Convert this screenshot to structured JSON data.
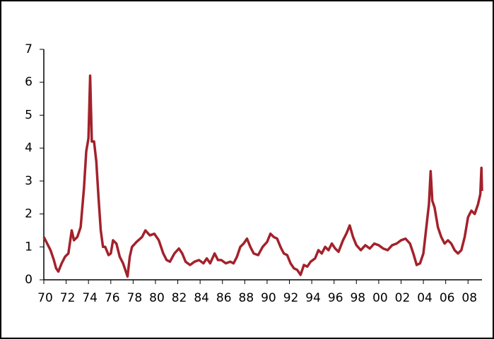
{
  "chart_data": {
    "type": "line",
    "x": [
      1970,
      1970.3,
      1970.6,
      1970.9,
      1971.1,
      1971.3,
      1971.6,
      1971.9,
      1972.2,
      1972.5,
      1972.7,
      1973.0,
      1973.3,
      1973.6,
      1973.8,
      1974.0,
      1974.15,
      1974.3,
      1974.5,
      1974.7,
      1974.9,
      1975.1,
      1975.3,
      1975.5,
      1975.8,
      1976.0,
      1976.2,
      1976.5,
      1976.8,
      1977.1,
      1977.3,
      1977.5,
      1977.7,
      1977.9,
      1978.3,
      1978.8,
      1979.1,
      1979.5,
      1979.9,
      1980.3,
      1980.7,
      1981.0,
      1981.3,
      1981.7,
      1982.1,
      1982.4,
      1982.7,
      1983.1,
      1983.5,
      1983.9,
      1984.3,
      1984.6,
      1984.9,
      1985.3,
      1985.6,
      1985.9,
      1986.3,
      1986.7,
      1987.0,
      1987.3,
      1987.6,
      1987.9,
      1988.2,
      1988.5,
      1988.8,
      1989.2,
      1989.6,
      1990.0,
      1990.3,
      1990.6,
      1990.9,
      1991.2,
      1991.5,
      1991.8,
      1992.1,
      1992.4,
      1992.7,
      1993.0,
      1993.3,
      1993.6,
      1993.9,
      1994.3,
      1994.6,
      1994.9,
      1995.2,
      1995.5,
      1995.8,
      1996.1,
      1996.4,
      1996.8,
      1997.1,
      1997.4,
      1997.7,
      1998.0,
      1998.4,
      1998.8,
      1999.2,
      1999.6,
      2000.0,
      2000.4,
      2000.8,
      2001.2,
      2001.6,
      2002.0,
      2002.4,
      2002.8,
      2003.1,
      2003.4,
      2003.7,
      2004.0,
      2004.3,
      2004.5,
      2004.65,
      2004.8,
      2005.0,
      2005.3,
      2005.6,
      2005.9,
      2006.2,
      2006.5,
      2006.8,
      2007.1,
      2007.4,
      2007.7,
      2008.0,
      2008.3,
      2008.6,
      2008.9,
      2009.1,
      2009.2,
      2009.25
    ],
    "series": [
      {
        "color": "#a3212b",
        "values": [
          1.3,
          1.1,
          0.9,
          0.6,
          0.35,
          0.25,
          0.5,
          0.7,
          0.8,
          1.5,
          1.2,
          1.3,
          1.6,
          2.8,
          3.9,
          4.3,
          6.2,
          4.2,
          4.2,
          3.6,
          2.5,
          1.5,
          1.0,
          1.0,
          0.75,
          0.8,
          1.2,
          1.1,
          0.7,
          0.5,
          0.3,
          0.1,
          0.7,
          1.0,
          1.15,
          1.3,
          1.5,
          1.35,
          1.4,
          1.2,
          0.8,
          0.6,
          0.55,
          0.8,
          0.95,
          0.8,
          0.55,
          0.45,
          0.55,
          0.6,
          0.5,
          0.65,
          0.5,
          0.8,
          0.6,
          0.6,
          0.5,
          0.55,
          0.5,
          0.7,
          1.0,
          1.1,
          1.25,
          1.0,
          0.8,
          0.75,
          1.0,
          1.15,
          1.4,
          1.3,
          1.25,
          1.0,
          0.8,
          0.75,
          0.5,
          0.35,
          0.3,
          0.15,
          0.45,
          0.4,
          0.55,
          0.65,
          0.9,
          0.8,
          1.0,
          0.9,
          1.1,
          0.95,
          0.85,
          1.2,
          1.4,
          1.65,
          1.3,
          1.05,
          0.9,
          1.05,
          0.95,
          1.1,
          1.05,
          0.95,
          0.9,
          1.05,
          1.1,
          1.2,
          1.25,
          1.1,
          0.8,
          0.45,
          0.5,
          0.8,
          1.7,
          2.3,
          3.3,
          2.4,
          2.2,
          1.6,
          1.3,
          1.1,
          1.2,
          1.1,
          0.9,
          0.8,
          0.9,
          1.3,
          1.9,
          2.1,
          2.0,
          2.3,
          2.6,
          3.4,
          2.7
        ]
      }
    ],
    "xlim": [
      1970,
      2009.25
    ],
    "xticks": [
      {
        "value": 1970,
        "label": "70"
      },
      {
        "value": 1972,
        "label": "72"
      },
      {
        "value": 1974,
        "label": "74"
      },
      {
        "value": 1976,
        "label": "76"
      },
      {
        "value": 1978,
        "label": "78"
      },
      {
        "value": 1980,
        "label": "80"
      },
      {
        "value": 1982,
        "label": "82"
      },
      {
        "value": 1984,
        "label": "84"
      },
      {
        "value": 1986,
        "label": "86"
      },
      {
        "value": 1988,
        "label": "88"
      },
      {
        "value": 1990,
        "label": "90"
      },
      {
        "value": 1992,
        "label": "92"
      },
      {
        "value": 1994,
        "label": "94"
      },
      {
        "value": 1996,
        "label": "96"
      },
      {
        "value": 1998,
        "label": "98"
      },
      {
        "value": 2000,
        "label": "00"
      },
      {
        "value": 2002,
        "label": "02"
      },
      {
        "value": 2004,
        "label": "04"
      },
      {
        "value": 2006,
        "label": "06"
      },
      {
        "value": 2008,
        "label": "08"
      }
    ],
    "ylim": [
      0,
      7
    ],
    "yticks": [
      0,
      1,
      2,
      3,
      4,
      5,
      6,
      7
    ],
    "grid": false
  }
}
